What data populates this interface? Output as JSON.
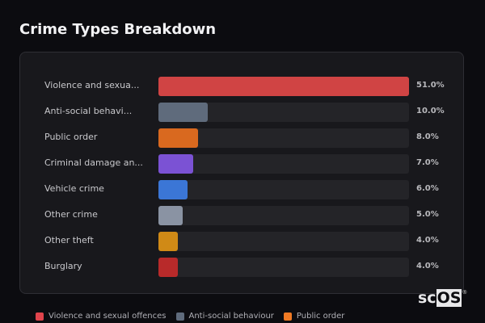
{
  "header": {
    "title": "Crime Types Breakdown"
  },
  "chart_data": {
    "type": "bar",
    "orientation": "horizontal",
    "title": "Crime Types Breakdown",
    "categories": [
      "Violence and sexual offences",
      "Anti-social behaviour",
      "Public order",
      "Criminal damage and arson",
      "Vehicle crime",
      "Other crime",
      "Other theft",
      "Burglary"
    ],
    "display_labels": [
      "Violence and sexua...",
      "Anti-social behavi...",
      "Public order",
      "Criminal damage an...",
      "Vehicle crime",
      "Other crime",
      "Other theft",
      "Burglary"
    ],
    "values": [
      51.0,
      10.0,
      8.0,
      7.0,
      6.0,
      5.0,
      4.0,
      4.0
    ],
    "value_labels": [
      "51.0%",
      "10.0%",
      "8.0%",
      "7.0%",
      "6.0%",
      "5.0%",
      "4.0%",
      "4.0%"
    ],
    "colors": [
      "#d04444",
      "#5f6b7c",
      "#d9691f",
      "#7b52d4",
      "#3b76d6",
      "#8a93a3",
      "#d08a16",
      "#b82a2a"
    ],
    "xlabel": "",
    "ylabel": "",
    "xlim": [
      0,
      51
    ],
    "grid": false,
    "legend_position": "bottom"
  },
  "legend": [
    {
      "label": "Violence and sexual offences",
      "color": "#e0444c"
    },
    {
      "label": "Anti-social behaviour",
      "color": "#5f6b7c"
    },
    {
      "label": "Public order",
      "color": "#f07a24"
    }
  ],
  "logo": {
    "text_a": "sc",
    "text_b": "OS",
    "mark": "®"
  }
}
